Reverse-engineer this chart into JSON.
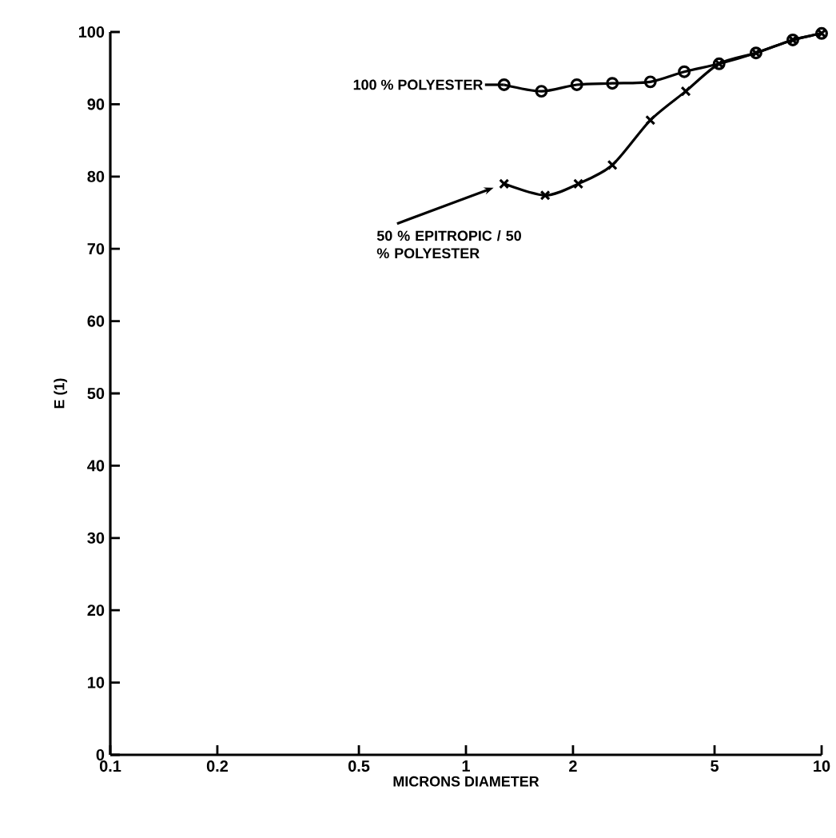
{
  "chart_data": {
    "type": "line",
    "xlabel": "MICRONS DIAMETER",
    "ylabel": "E (1)",
    "log": "x",
    "xlim": [
      0.1,
      10
    ],
    "ylim": [
      0,
      100
    ],
    "xticks": [
      {
        "value": 0.1,
        "label": "0.1"
      },
      {
        "value": 0.2,
        "label": "0.2"
      },
      {
        "value": 0.5,
        "label": "0.5"
      },
      1,
      2,
      5,
      10
    ],
    "yticks": [
      0,
      10,
      20,
      30,
      40,
      50,
      60,
      70,
      80,
      90,
      100
    ],
    "grid": false,
    "line_style": "solid",
    "series": [
      {
        "name": "100 % POLYESTER",
        "color": "#000000",
        "marker": "circle",
        "x": [
          1.28,
          1.63,
          2.05,
          2.58,
          3.3,
          4.11,
          5.15,
          6.54,
          8.3,
          10
        ],
        "values": [
          92.7,
          91.8,
          92.7,
          92.9,
          93.1,
          94.5,
          95.6,
          97.1,
          98.9,
          99.8
        ]
      },
      {
        "name": "50 % EPITROPIC / 50 % POLYESTER",
        "color": "#000000",
        "marker": "cross",
        "x": [
          1.28,
          1.67,
          2.07,
          2.58,
          3.3,
          4.15,
          5.15,
          6.54,
          8.3,
          10
        ],
        "values": [
          79.0,
          77.4,
          79.0,
          81.6,
          87.8,
          91.8,
          95.6,
          97.1,
          98.9,
          99.8
        ]
      }
    ]
  }
}
